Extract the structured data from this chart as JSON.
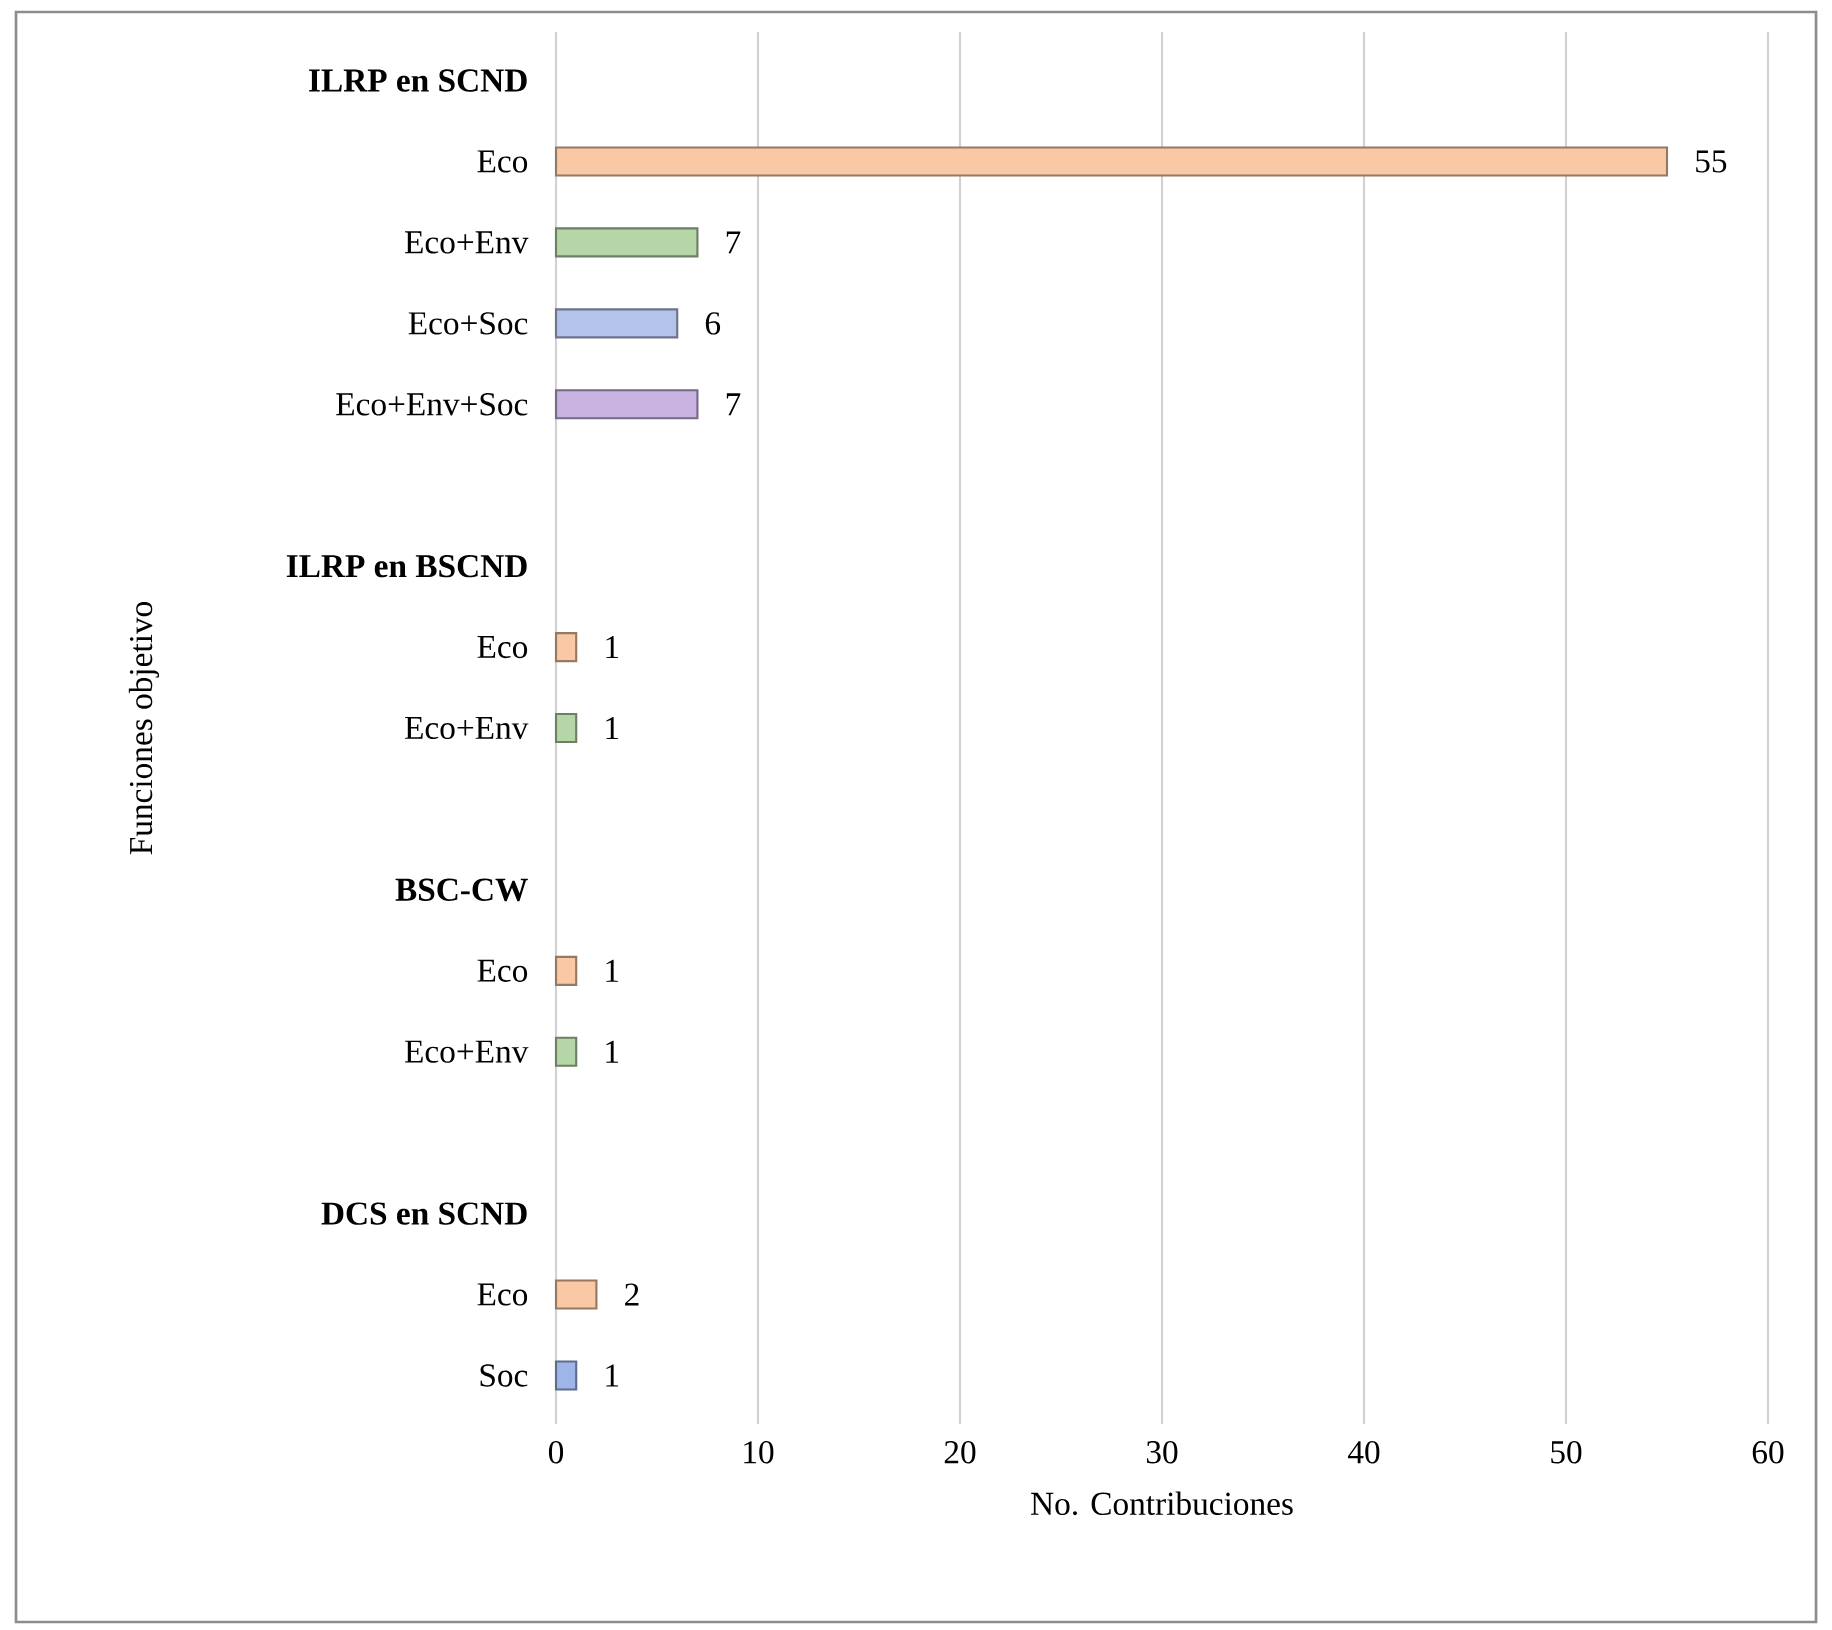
{
  "chart_data": {
    "type": "bar",
    "orientation": "horizontal",
    "xlabel": "No. Contribuciones",
    "ylabel": "Funciones objetivo",
    "categories": [
      "ILRP en SCND",
      "Eco",
      "Eco+Env",
      "Eco+Soc",
      "Eco+Env+Soc",
      null,
      "ILRP en BSCND",
      "Eco",
      "Eco+Env",
      null,
      "BSC-CW",
      "Eco",
      "Eco+Env",
      null,
      "DCS en SCND",
      "Eco",
      "Soc"
    ],
    "values": [
      null,
      55,
      7,
      6,
      7,
      null,
      null,
      1,
      1,
      null,
      null,
      1,
      1,
      null,
      null,
      2,
      1
    ],
    "colors": [
      "#f8c9a4",
      "#f8c9a4",
      "#b5d6a7",
      "#b4c3ea",
      "#c7b2e0",
      "#f8c9a4",
      "#f8c9a4",
      "#f8c9a4",
      "#b5d6a7",
      "#f8c9a4",
      "#f8c9a4",
      "#f8c9a4",
      "#b5d6a7",
      "#f8c9a4",
      "#f8c9a4",
      "#f8c9a4",
      "#9db5e8"
    ],
    "xlim": [
      0,
      60
    ],
    "xticks": [
      0,
      10,
      20,
      30,
      40,
      50,
      60
    ],
    "grid": "x",
    "data_labels": true
  }
}
